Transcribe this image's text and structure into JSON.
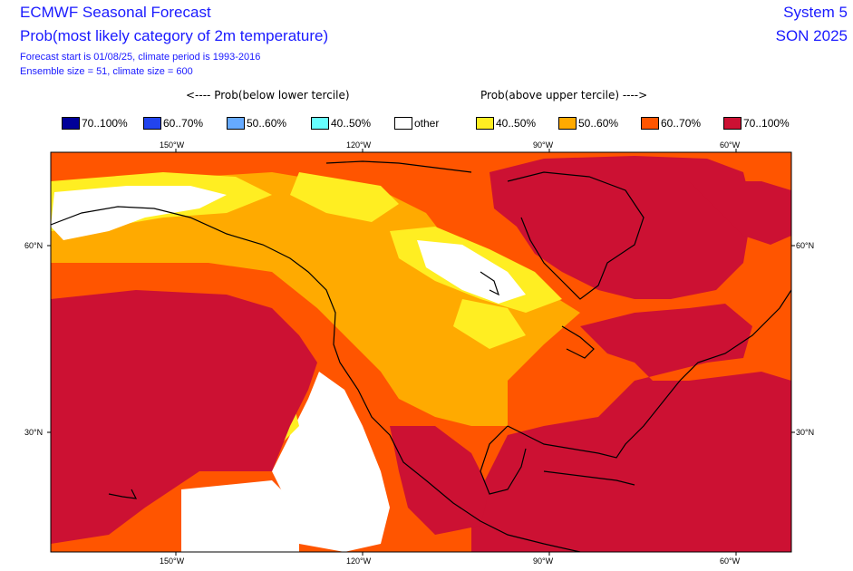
{
  "header": {
    "title": "ECMWF Seasonal Forecast",
    "subtitle": "Prob(most likely category of 2m temperature)",
    "info1": "Forecast start is 01/08/25, climate period is 1993-2016",
    "info2": "Ensemble size = 51, climate size = 600",
    "system": "System 5",
    "season": "SON 2025"
  },
  "legend": {
    "below_label": "<---- Prob(below lower tercile)",
    "above_label": "Prob(above upper tercile) ---->",
    "items": [
      {
        "label": "70..100%",
        "color": "#000099"
      },
      {
        "label": "60..70%",
        "color": "#2244ee"
      },
      {
        "label": "50..60%",
        "color": "#66aaff"
      },
      {
        "label": "40..50%",
        "color": "#66ffff"
      },
      {
        "label": "other",
        "color": "#ffffff"
      },
      {
        "label": "40..50%",
        "color": "#ffee22"
      },
      {
        "label": "50..60%",
        "color": "#ffaa00"
      },
      {
        "label": "60..70%",
        "color": "#ff5500"
      },
      {
        "label": "70..100%",
        "color": "#cc1133"
      }
    ]
  },
  "axes": {
    "top_ticks": [
      "150°W",
      "120°W",
      "90°W",
      "60°W"
    ],
    "bottom_ticks": [
      "150°W",
      "120°W",
      "90°W",
      "60°W"
    ],
    "left_ticks": [
      "60°N",
      "30°N"
    ],
    "right_ticks": [
      "60°N",
      "30°N"
    ]
  },
  "colors": {
    "p40_50": "#ffee22",
    "p50_60": "#ffaa00",
    "p60_70": "#ff5500",
    "p70_100": "#cc1133",
    "other": "#ffffff"
  }
}
